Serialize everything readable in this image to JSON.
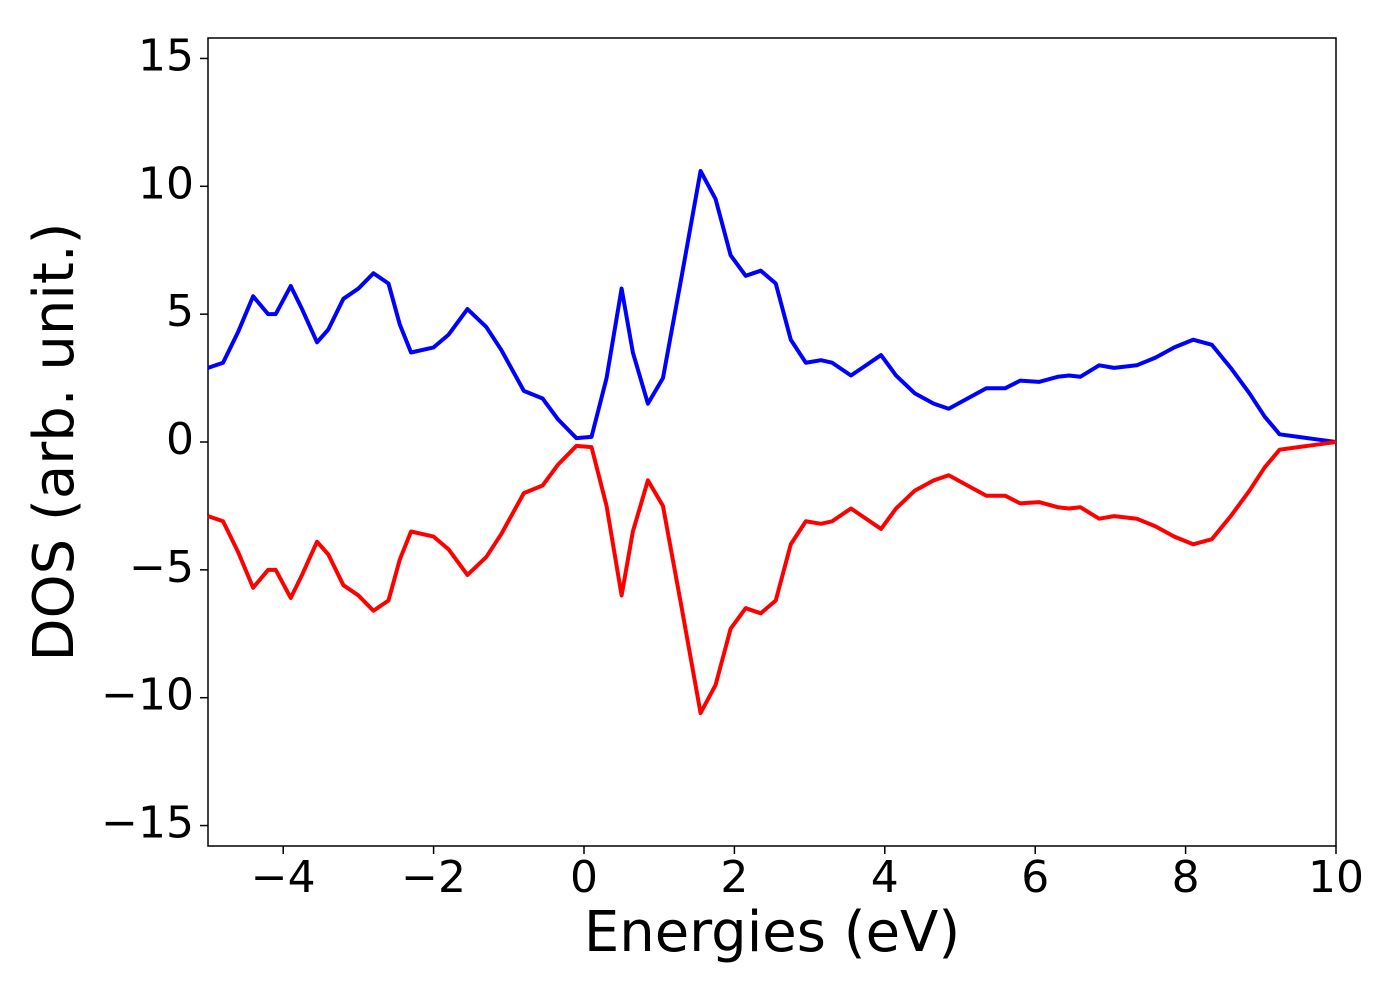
{
  "chart_data": {
    "type": "line",
    "xlabel": "Energies (eV)",
    "ylabel": "DOS (arb. unit.)",
    "x": [
      -5,
      -4.8,
      -4.6,
      -4.4,
      -4.2,
      -4.1,
      -3.9,
      -3.75,
      -3.55,
      -3.4,
      -3.2,
      -3.0,
      -2.8,
      -2.6,
      -2.45,
      -2.3,
      -2.0,
      -1.8,
      -1.55,
      -1.3,
      -1.1,
      -0.8,
      -0.55,
      -0.35,
      -0.1,
      0.1,
      0.3,
      0.5,
      0.65,
      0.85,
      1.05,
      1.3,
      1.55,
      1.75,
      1.95,
      2.15,
      2.35,
      2.55,
      2.75,
      2.95,
      3.15,
      3.3,
      3.55,
      3.7,
      3.95,
      4.15,
      4.4,
      4.65,
      4.85,
      5.1,
      5.35,
      5.6,
      5.8,
      6.05,
      6.3,
      6.45,
      6.6,
      6.85,
      7.05,
      7.35,
      7.6,
      7.85,
      8.1,
      8.35,
      8.6,
      8.85,
      9.05,
      9.25,
      9.5,
      9.75,
      10
    ],
    "series": [
      {
        "color": "#0000ff",
        "values": [
          2.9,
          3.1,
          4.3,
          5.7,
          5.0,
          5.0,
          6.1,
          5.2,
          3.9,
          4.4,
          5.6,
          6.0,
          6.6,
          6.2,
          4.6,
          3.5,
          3.7,
          4.2,
          5.2,
          4.5,
          3.6,
          2.0,
          1.7,
          0.9,
          0.15,
          0.2,
          2.5,
          6.0,
          3.5,
          1.5,
          2.5,
          6.5,
          10.6,
          9.5,
          7.3,
          6.5,
          6.7,
          6.2,
          4.0,
          3.1,
          3.2,
          3.1,
          2.6,
          2.9,
          3.4,
          2.6,
          1.9,
          1.5,
          1.3,
          1.7,
          2.1,
          2.1,
          2.4,
          2.35,
          2.55,
          2.6,
          2.55,
          3.0,
          2.9,
          3.0,
          3.3,
          3.7,
          4.0,
          3.8,
          2.9,
          1.9,
          1.0,
          0.3,
          0.2,
          0.1,
          0.0
        ]
      },
      {
        "color": "#ff0000",
        "values": [
          -2.9,
          -3.1,
          -4.3,
          -5.7,
          -5.0,
          -5.0,
          -6.1,
          -5.2,
          -3.9,
          -4.4,
          -5.6,
          -6.0,
          -6.6,
          -6.2,
          -4.6,
          -3.5,
          -3.7,
          -4.2,
          -5.2,
          -4.5,
          -3.6,
          -2.0,
          -1.7,
          -0.9,
          -0.15,
          -0.2,
          -2.5,
          -6.0,
          -3.5,
          -1.5,
          -2.5,
          -6.5,
          -10.6,
          -9.5,
          -7.3,
          -6.5,
          -6.7,
          -6.2,
          -4.0,
          -3.1,
          -3.2,
          -3.1,
          -2.6,
          -2.9,
          -3.4,
          -2.6,
          -1.9,
          -1.5,
          -1.3,
          -1.7,
          -2.1,
          -2.1,
          -2.4,
          -2.35,
          -2.55,
          -2.6,
          -2.55,
          -3.0,
          -2.9,
          -3.0,
          -3.3,
          -3.7,
          -4.0,
          -3.8,
          -2.9,
          -1.9,
          -1.0,
          -0.3,
          -0.2,
          -0.1,
          0.0
        ]
      }
    ],
    "xlim": [
      -5,
      10
    ],
    "xticks": [
      {
        "value": -4,
        "label": "−4"
      },
      {
        "value": -2,
        "label": "−2"
      },
      0,
      2,
      4,
      6,
      8,
      10
    ],
    "ylim": [
      -15.8,
      15.8
    ],
    "yticks": [
      {
        "value": -15,
        "label": "−15"
      },
      {
        "value": -10,
        "label": "−10"
      },
      {
        "value": -5,
        "label": "−5"
      },
      0,
      5,
      10,
      15
    ],
    "grid": false
  }
}
